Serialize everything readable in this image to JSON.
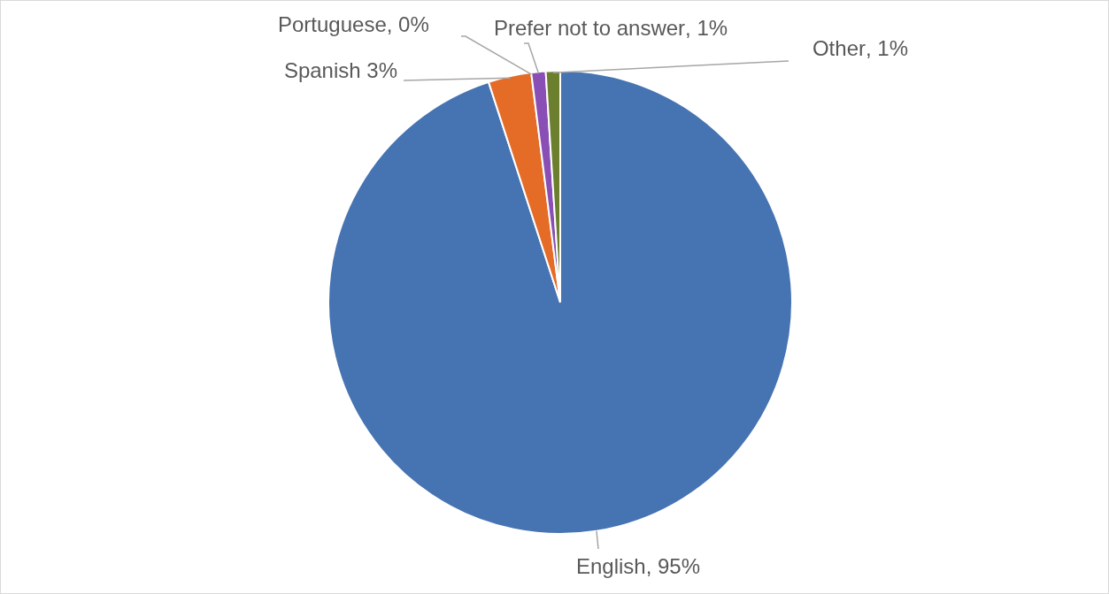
{
  "chart_data": {
    "type": "pie",
    "categories": [
      "English",
      "Spanish",
      "Portuguese",
      "Prefer not to answer",
      "Other"
    ],
    "values": [
      95,
      3,
      0,
      1,
      1
    ],
    "colors": [
      "#4673b2",
      "#e46c26",
      "#a5a5a5",
      "#8a4fb5",
      "#6b7f2f"
    ],
    "value_labels": [
      ", 95%",
      " 3%",
      ", 0%",
      ", 1%",
      ", 1%"
    ],
    "legend": false
  }
}
